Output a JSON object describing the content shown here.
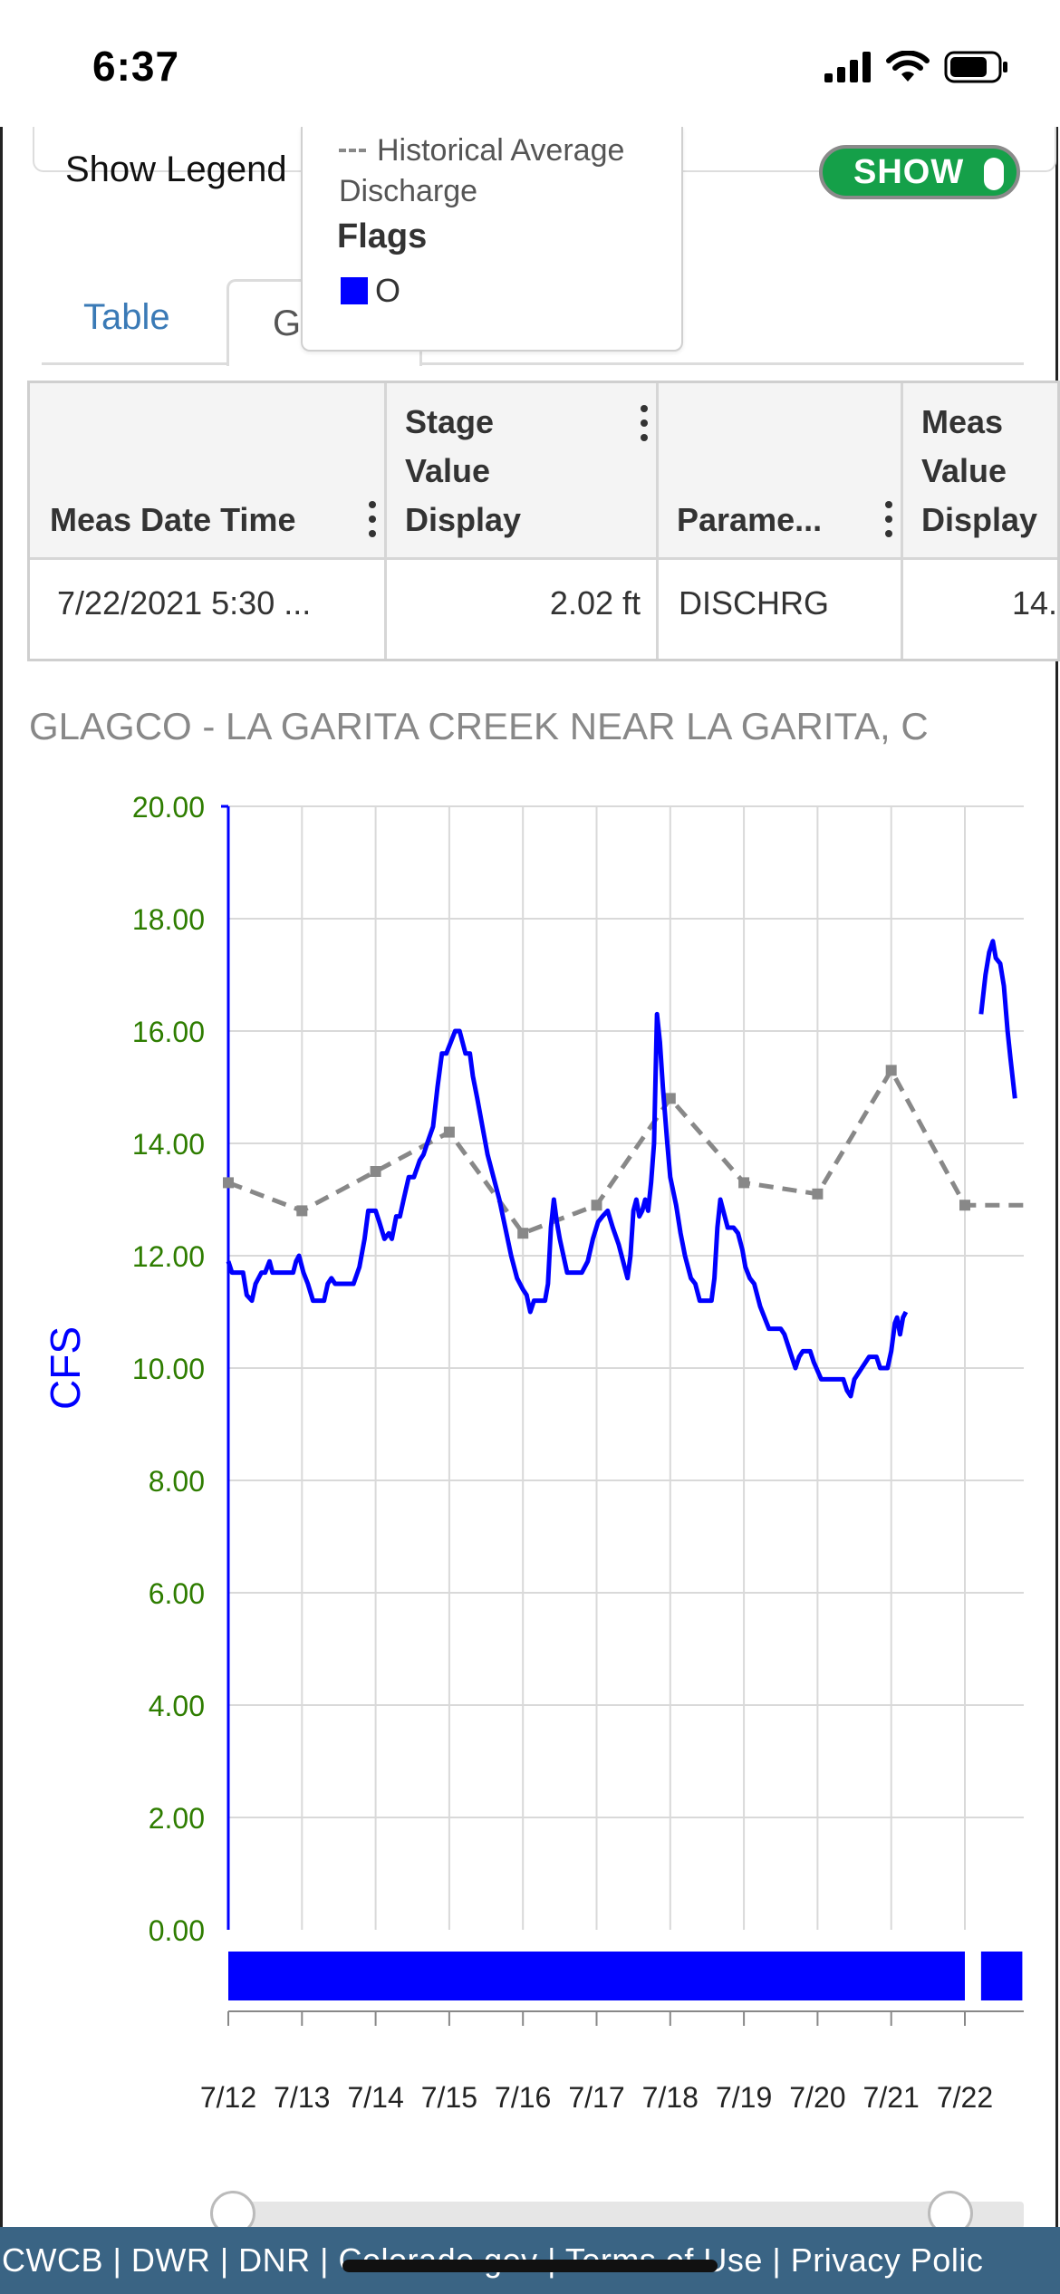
{
  "status_bar": {
    "time": "6:37"
  },
  "legend_toggle": {
    "label": "Show Legend",
    "state": "SHOW",
    "on": true
  },
  "legend_popup": {
    "historical_label": "Historical Average Discharge",
    "flags_title": "Flags",
    "flag_label": "O",
    "flag_color": "#0000ff"
  },
  "tabs": [
    {
      "label": "Table",
      "active": false
    },
    {
      "label": "G",
      "active": true
    }
  ],
  "table": {
    "headers": [
      "Meas Date Time",
      "Stage Value Display",
      "Parame...",
      "Meas Value Display"
    ],
    "rows": [
      [
        "7/22/2021 5:30 ...",
        "2.02 ft",
        "DISCHRG",
        "14."
      ]
    ]
  },
  "chart_title": "GLAGCO - LA GARITA CREEK NEAR LA GARITA, C",
  "chart_data": {
    "type": "line",
    "title": "GLAGCO - LA GARITA CREEK NEAR LA GARITA, C",
    "xlabel": "",
    "ylabel": "CFS",
    "ylim": [
      0,
      20
    ],
    "xlim": [
      0,
      10.9
    ],
    "yticks": [
      "0.00",
      "2.00",
      "4.00",
      "6.00",
      "8.00",
      "10.00",
      "12.00",
      "14.00",
      "16.00",
      "18.00",
      "20.00"
    ],
    "xticks": [
      "7/12",
      "7/13",
      "7/14",
      "7/15",
      "7/16",
      "7/17",
      "7/18",
      "7/19",
      "7/20",
      "7/21",
      "7/22"
    ],
    "grid": true,
    "series": [
      {
        "name": "",
        "color": "#0000ff",
        "style": "solid",
        "segments": [
          [
            [
              0,
              11.9
            ],
            [
              0.05,
              11.7
            ],
            [
              0.1,
              11.7
            ],
            [
              0.2,
              11.7
            ],
            [
              0.25,
              11.3
            ],
            [
              0.32,
              11.2
            ],
            [
              0.37,
              11.5
            ],
            [
              0.45,
              11.7
            ],
            [
              0.5,
              11.7
            ],
            [
              0.56,
              11.9
            ],
            [
              0.6,
              11.7
            ],
            [
              0.7,
              11.7
            ],
            [
              0.8,
              11.7
            ],
            [
              0.88,
              11.7
            ],
            [
              0.92,
              11.9
            ],
            [
              0.96,
              12.0
            ],
            [
              1.02,
              11.7
            ],
            [
              1.08,
              11.5
            ],
            [
              1.15,
              11.2
            ],
            [
              1.25,
              11.2
            ],
            [
              1.3,
              11.2
            ],
            [
              1.35,
              11.5
            ],
            [
              1.4,
              11.6
            ],
            [
              1.45,
              11.5
            ],
            [
              1.55,
              11.5
            ],
            [
              1.7,
              11.5
            ],
            [
              1.78,
              11.8
            ],
            [
              1.85,
              12.3
            ],
            [
              1.9,
              12.8
            ],
            [
              2.0,
              12.8
            ],
            [
              2.05,
              12.6
            ],
            [
              2.12,
              12.3
            ],
            [
              2.18,
              12.4
            ],
            [
              2.22,
              12.3
            ],
            [
              2.28,
              12.7
            ],
            [
              2.33,
              12.7
            ],
            [
              2.38,
              13.0
            ],
            [
              2.45,
              13.4
            ],
            [
              2.52,
              13.4
            ],
            [
              2.6,
              13.7
            ],
            [
              2.65,
              13.8
            ],
            [
              2.7,
              14.0
            ],
            [
              2.78,
              14.3
            ],
            [
              2.84,
              15.0
            ],
            [
              2.9,
              15.6
            ],
            [
              2.96,
              15.6
            ],
            [
              3.02,
              15.8
            ],
            [
              3.08,
              16.0
            ],
            [
              3.14,
              16.0
            ],
            [
              3.18,
              15.8
            ],
            [
              3.22,
              15.6
            ],
            [
              3.28,
              15.6
            ],
            [
              3.32,
              15.2
            ],
            [
              3.38,
              14.8
            ],
            [
              3.45,
              14.3
            ],
            [
              3.52,
              13.8
            ],
            [
              3.6,
              13.4
            ],
            [
              3.68,
              13.0
            ],
            [
              3.76,
              12.5
            ],
            [
              3.84,
              12.0
            ],
            [
              3.92,
              11.6
            ],
            [
              4.0,
              11.4
            ],
            [
              4.05,
              11.3
            ],
            [
              4.1,
              11.0
            ],
            [
              4.15,
              11.2
            ],
            [
              4.22,
              11.2
            ],
            [
              4.3,
              11.2
            ],
            [
              4.34,
              11.5
            ],
            [
              4.38,
              12.5
            ],
            [
              4.42,
              13.0
            ],
            [
              4.46,
              12.6
            ],
            [
              4.5,
              12.3
            ],
            [
              4.55,
              12.0
            ],
            [
              4.6,
              11.7
            ],
            [
              4.7,
              11.7
            ],
            [
              4.8,
              11.7
            ],
            [
              4.88,
              11.9
            ],
            [
              4.95,
              12.3
            ],
            [
              5.02,
              12.6
            ],
            [
              5.08,
              12.7
            ],
            [
              5.15,
              12.8
            ],
            [
              5.22,
              12.5
            ],
            [
              5.3,
              12.2
            ],
            [
              5.38,
              11.8
            ],
            [
              5.42,
              11.6
            ],
            [
              5.46,
              12.0
            ],
            [
              5.5,
              12.8
            ],
            [
              5.54,
              13.0
            ],
            [
              5.58,
              12.7
            ],
            [
              5.62,
              12.8
            ],
            [
              5.66,
              13.0
            ],
            [
              5.7,
              12.8
            ],
            [
              5.74,
              13.3
            ],
            [
              5.78,
              14.0
            ],
            [
              5.82,
              16.3
            ],
            [
              5.86,
              15.8
            ],
            [
              5.9,
              15.0
            ],
            [
              5.96,
              14.0
            ],
            [
              6.0,
              13.4
            ],
            [
              6.08,
              12.9
            ],
            [
              6.14,
              12.4
            ],
            [
              6.2,
              12.0
            ],
            [
              6.28,
              11.6
            ],
            [
              6.34,
              11.5
            ],
            [
              6.4,
              11.2
            ],
            [
              6.5,
              11.2
            ],
            [
              6.56,
              11.2
            ],
            [
              6.6,
              11.6
            ],
            [
              6.64,
              12.5
            ],
            [
              6.68,
              13.0
            ],
            [
              6.72,
              12.8
            ],
            [
              6.78,
              12.5
            ],
            [
              6.86,
              12.5
            ],
            [
              6.92,
              12.4
            ],
            [
              6.98,
              12.1
            ],
            [
              7.02,
              11.8
            ],
            [
              7.08,
              11.6
            ],
            [
              7.14,
              11.5
            ],
            [
              7.18,
              11.3
            ],
            [
              7.22,
              11.1
            ],
            [
              7.28,
              10.9
            ],
            [
              7.34,
              10.7
            ],
            [
              7.42,
              10.7
            ],
            [
              7.5,
              10.7
            ],
            [
              7.55,
              10.6
            ],
            [
              7.6,
              10.4
            ],
            [
              7.65,
              10.2
            ],
            [
              7.7,
              10.0
            ],
            [
              7.75,
              10.2
            ],
            [
              7.8,
              10.3
            ],
            [
              7.9,
              10.3
            ],
            [
              7.95,
              10.1
            ],
            [
              8.05,
              9.8
            ],
            [
              8.15,
              9.8
            ],
            [
              8.25,
              9.8
            ],
            [
              8.35,
              9.8
            ],
            [
              8.4,
              9.6
            ],
            [
              8.45,
              9.5
            ],
            [
              8.5,
              9.8
            ],
            [
              8.6,
              10.0
            ],
            [
              8.7,
              10.2
            ],
            [
              8.8,
              10.2
            ],
            [
              8.85,
              10.0
            ],
            [
              8.95,
              10.0
            ],
            [
              9.0,
              10.3
            ],
            [
              9.05,
              10.8
            ],
            [
              9.08,
              10.9
            ],
            [
              9.12,
              10.6
            ],
            [
              9.16,
              10.9
            ],
            [
              9.2,
              11.0
            ]
          ],
          [
            [
              10.22,
              16.3
            ],
            [
              10.28,
              17.0
            ],
            [
              10.33,
              17.4
            ],
            [
              10.38,
              17.6
            ],
            [
              10.42,
              17.3
            ],
            [
              10.48,
              17.2
            ],
            [
              10.53,
              16.8
            ],
            [
              10.58,
              16.0
            ],
            [
              10.62,
              15.5
            ],
            [
              10.68,
              14.8
            ]
          ]
        ]
      },
      {
        "name": "Historical Average Discharge",
        "color": "#888888",
        "style": "dashed",
        "points": [
          [
            0,
            13.3
          ],
          [
            1,
            12.8
          ],
          [
            2,
            13.5
          ],
          [
            3,
            14.2
          ],
          [
            4,
            12.4
          ],
          [
            5,
            12.9
          ],
          [
            6,
            14.8
          ],
          [
            7,
            13.3
          ],
          [
            8,
            13.1
          ],
          [
            9,
            15.3
          ],
          [
            10,
            12.9
          ],
          [
            10.9,
            12.9
          ]
        ]
      }
    ],
    "flags": {
      "name": "O",
      "color": "#0000ff",
      "ranges": [
        [
          0,
          10.0
        ],
        [
          10.22,
          10.78
        ]
      ]
    }
  },
  "slider": {
    "start": 0,
    "end": 1
  },
  "footer": {
    "links": "CWCB | DWR | DNR | Colorado.gov | Terms of Use | Privacy Polic"
  }
}
